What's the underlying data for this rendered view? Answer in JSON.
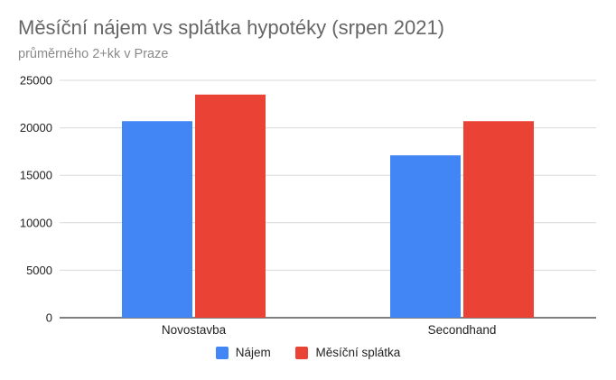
{
  "chart_data": {
    "type": "bar",
    "title": "Měsíční nájem vs splátka hypotéky (srpen 2021)",
    "subtitle": "průměrného 2+kk v Praze",
    "categories": [
      "Novostavba",
      "Secondhand"
    ],
    "series": [
      {
        "name": "Nájem",
        "color": "#4285F4",
        "values": [
          20700,
          17100
        ]
      },
      {
        "name": "Měsíční splátka",
        "color": "#EA4335",
        "values": [
          23500,
          20700
        ]
      }
    ],
    "ylim": [
      0,
      25000
    ],
    "yticks": [
      "0",
      "5000",
      "10000",
      "15000",
      "20000",
      "25000"
    ],
    "xlabel": "",
    "ylabel": "",
    "grid": true,
    "legend_position": "bottom"
  }
}
